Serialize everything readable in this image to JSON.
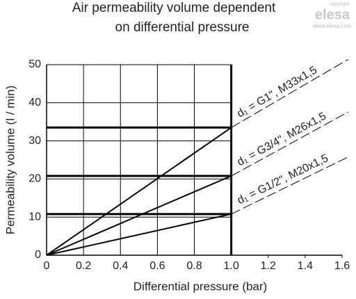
{
  "chart_data": {
    "type": "line",
    "title": [
      "Air permeability volume dependent",
      "on differential pressure"
    ],
    "x_label": "Differential pressure (bar)",
    "y_label": "Permeability volume (l / min)",
    "x": [
      0,
      1.0
    ],
    "series": [
      {
        "name": "d₁ = G1\", M33x1,5",
        "color": "#000000",
        "values": [
          0,
          33.5
        ]
      },
      {
        "name": "d₁ = G3/4\", M26x1,5",
        "color": "#000000",
        "values": [
          0,
          20.8
        ]
      },
      {
        "name": "d₁ = G1/2\", M20x1,5",
        "color": "#000000",
        "values": [
          0,
          10.8
        ]
      }
    ],
    "xlim": [
      0,
      1.6
    ],
    "xticks": [
      0,
      0.2,
      0.4,
      0.6,
      0.8,
      {
        "value": 1,
        "label": "1.0"
      },
      1.2,
      1.4,
      1.6
    ],
    "ylim": [
      0,
      50
    ],
    "yticks": [
      0,
      10,
      20,
      30,
      40,
      50
    ],
    "grid": true
  },
  "watermark": {
    "copyright": "copyright",
    "brand": "elesa",
    "url": "www.elesa.com"
  }
}
